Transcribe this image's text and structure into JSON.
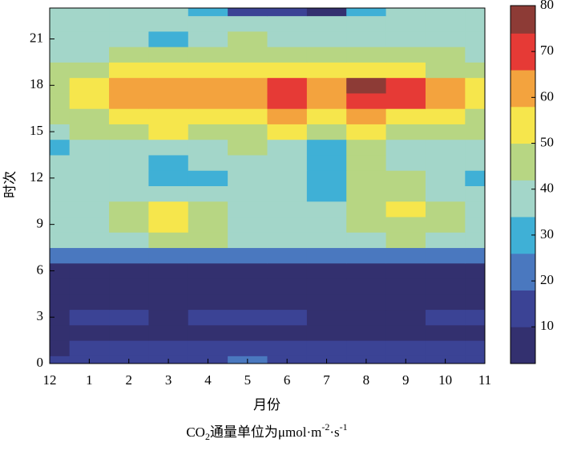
{
  "chart_data": {
    "type": "contour",
    "x_label": "月份",
    "y_label": "时次",
    "caption": [
      "CO",
      "2",
      "通量单位为μmol·m",
      "-2",
      "·s",
      "-1"
    ],
    "categories": [
      "12",
      "1",
      "2",
      "3",
      "4",
      "5",
      "6",
      "7",
      "8",
      "9",
      "10",
      "11"
    ],
    "y": [
      0,
      1,
      2,
      3,
      4,
      5,
      6,
      7,
      8,
      9,
      10,
      11,
      12,
      13,
      14,
      15,
      16,
      17,
      18,
      19,
      20,
      21,
      22,
      23
    ],
    "ylim": [
      0,
      23
    ],
    "yticks": [
      0,
      3,
      6,
      9,
      12,
      15,
      18,
      21
    ],
    "z": [
      [
        14,
        14,
        12,
        12,
        14,
        20,
        16,
        14,
        14,
        14,
        14,
        14
      ],
      [
        8,
        12,
        12,
        12,
        12,
        12,
        12,
        12,
        12,
        12,
        12,
        12
      ],
      [
        8,
        8,
        8,
        8,
        8,
        8,
        8,
        8,
        8,
        8,
        8,
        8
      ],
      [
        8,
        12,
        12,
        8,
        12,
        12,
        12,
        8,
        8,
        8,
        12,
        12
      ],
      [
        8,
        8,
        8,
        8,
        8,
        8,
        8,
        8,
        8,
        8,
        8,
        8
      ],
      [
        8,
        8,
        8,
        8,
        8,
        8,
        8,
        8,
        8,
        8,
        8,
        8
      ],
      [
        8,
        8,
        8,
        8,
        8,
        6,
        8,
        8,
        8,
        8,
        8,
        8
      ],
      [
        20,
        20,
        20,
        20,
        20,
        20,
        20,
        22,
        20,
        20,
        20,
        20
      ],
      [
        36,
        38,
        40,
        44,
        44,
        38,
        36,
        36,
        40,
        44,
        40,
        38
      ],
      [
        38,
        40,
        44,
        52,
        44,
        38,
        38,
        38,
        44,
        46,
        42,
        40
      ],
      [
        38,
        38,
        44,
        50,
        44,
        40,
        40,
        38,
        44,
        50,
        44,
        40
      ],
      [
        38,
        38,
        38,
        40,
        38,
        38,
        40,
        30,
        44,
        44,
        40,
        38
      ],
      [
        38,
        38,
        38,
        28,
        28,
        38,
        40,
        28,
        44,
        44,
        38,
        30
      ],
      [
        38,
        38,
        38,
        30,
        38,
        38,
        40,
        30,
        44,
        40,
        38,
        38
      ],
      [
        30,
        38,
        38,
        38,
        38,
        44,
        38,
        30,
        44,
        40,
        38,
        38
      ],
      [
        40,
        44,
        44,
        50,
        44,
        44,
        50,
        44,
        50,
        44,
        44,
        44
      ],
      [
        44,
        48,
        52,
        54,
        52,
        56,
        60,
        50,
        60,
        56,
        52,
        48
      ],
      [
        48,
        52,
        60,
        64,
        62,
        64,
        68,
        58,
        68,
        68,
        62,
        56
      ],
      [
        44,
        50,
        58,
        64,
        60,
        62,
        70,
        60,
        76,
        68,
        60,
        50
      ],
      [
        44,
        44,
        50,
        54,
        50,
        52,
        56,
        50,
        56,
        52,
        48,
        44
      ],
      [
        40,
        40,
        44,
        44,
        44,
        48,
        46,
        44,
        44,
        44,
        42,
        40
      ],
      [
        38,
        38,
        40,
        32,
        40,
        44,
        40,
        38,
        40,
        38,
        38,
        38
      ],
      [
        38,
        38,
        38,
        38,
        38,
        38,
        38,
        36,
        38,
        38,
        38,
        38
      ],
      [
        38,
        38,
        38,
        38,
        30,
        14,
        14,
        8,
        30,
        38,
        38,
        38
      ]
    ],
    "levels": [
      2,
      10,
      18,
      26,
      34,
      42,
      50,
      58,
      66,
      74,
      80
    ],
    "colors": [
      "#33306f",
      "#3b4395",
      "#4a78bf",
      "#3fb0d6",
      "#a3d6c9",
      "#b7d683",
      "#f6e64c",
      "#f3a33e",
      "#e63a36",
      "#8d3b36"
    ],
    "clim": [
      2,
      80
    ],
    "cticks": [
      10,
      20,
      30,
      40,
      50,
      60,
      70,
      80
    ]
  }
}
